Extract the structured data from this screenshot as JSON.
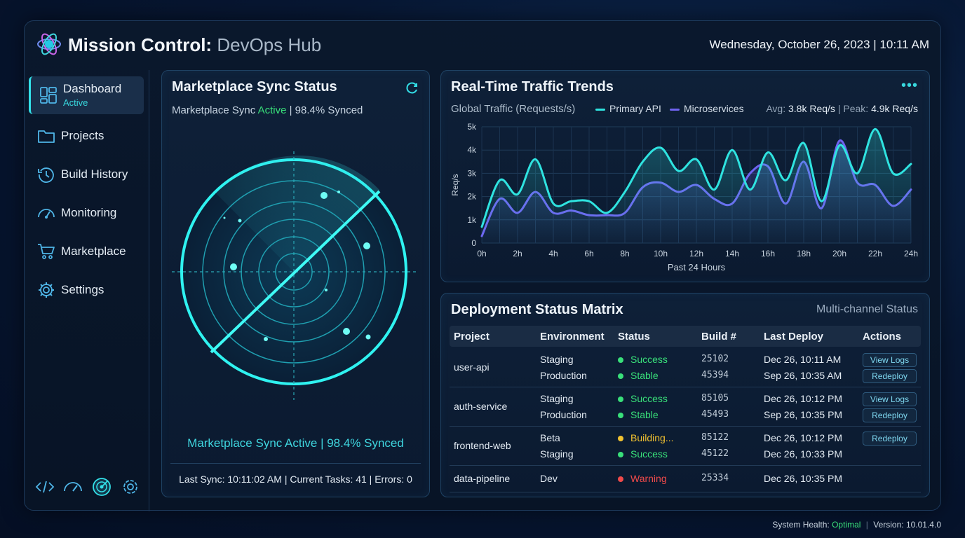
{
  "header": {
    "title": "Mission Control:",
    "subtitle": "DevOps Hub",
    "datetime": "Wednesday, October 26, 2023 | 10:11 AM"
  },
  "sidebar": {
    "items": [
      {
        "label": "Dashboard",
        "sub": "Active",
        "icon": "dashboard-icon"
      },
      {
        "label": "Projects",
        "icon": "folder-icon"
      },
      {
        "label": "Build History",
        "icon": "history-icon"
      },
      {
        "label": "Monitoring",
        "icon": "gauge-icon"
      },
      {
        "label": "Marketplace",
        "icon": "cart-icon"
      },
      {
        "label": "Settings",
        "icon": "gear-icon"
      }
    ],
    "bottom_icons": [
      "code-icon",
      "speedometer-icon",
      "radar-icon",
      "settings-icon"
    ]
  },
  "sync": {
    "title": "Marketplace Sync Status",
    "sub_prefix": "Marketplace Sync",
    "sub_status": "Active",
    "sub_suffix": "| 98.4% Synced",
    "footer": "Marketplace Sync Active | 98.4% Synced",
    "stats": "Last Sync: 10:11:02 AM | Current Tasks: 41 | Errors: 0"
  },
  "traffic": {
    "title": "Real-Time Traffic Trends",
    "subtitle": "Global Traffic (Requests/s)",
    "legend": [
      "Primary API",
      "Microservices"
    ],
    "avg_label": "Avg:",
    "avg_value": "3.8k Req/s",
    "peak_label": "Peak:",
    "peak_value": "4.9k Req/s"
  },
  "chart_data": {
    "type": "line",
    "xlabel": "Past 24 Hours",
    "ylabel": "Req/s",
    "x_ticks": [
      "0h",
      "2h",
      "4h",
      "6h",
      "8h",
      "10h",
      "12h",
      "14h",
      "16h",
      "18h",
      "20h",
      "22h",
      "24h"
    ],
    "y_ticks": [
      "0",
      "1k",
      "2k",
      "3k",
      "4k",
      "5k"
    ],
    "ylim": [
      0,
      5000
    ],
    "xlim": [
      0,
      24
    ],
    "grid": true,
    "series": [
      {
        "name": "Primary API",
        "color": "#2fe3e0",
        "x": [
          0,
          1,
          2,
          3,
          4,
          5,
          6,
          7,
          8,
          9,
          10,
          11,
          12,
          13,
          14,
          15,
          16,
          17,
          18,
          19,
          20,
          21,
          22,
          23,
          24
        ],
        "values": [
          700,
          2700,
          2100,
          3600,
          1700,
          1800,
          1800,
          1300,
          2200,
          3500,
          4100,
          3100,
          3600,
          2300,
          4000,
          2300,
          3900,
          2700,
          4300,
          1800,
          4200,
          3000,
          4900,
          3000,
          3400
        ]
      },
      {
        "name": "Microservices",
        "color": "#6f63f0",
        "x": [
          0,
          1,
          2,
          3,
          4,
          5,
          6,
          7,
          8,
          9,
          10,
          11,
          12,
          13,
          14,
          15,
          16,
          17,
          18,
          19,
          20,
          21,
          22,
          23,
          24
        ],
        "values": [
          300,
          1900,
          1300,
          2200,
          1300,
          1400,
          1200,
          1200,
          1300,
          2400,
          2600,
          2200,
          2500,
          1900,
          1700,
          3000,
          3300,
          1700,
          3500,
          1500,
          4400,
          2600,
          2500,
          1600,
          2300
        ]
      }
    ]
  },
  "matrix": {
    "title": "Deployment Status Matrix",
    "right_label": "Multi-channel Status",
    "headers": [
      "Project",
      "Environment",
      "Status",
      "Build #",
      "Last Deploy",
      "Actions"
    ],
    "rows": [
      {
        "project": "user-api",
        "lines": [
          {
            "env": "Staging",
            "status": "Success",
            "color": "#39e07a",
            "build": "25102",
            "deploy": "Dec 26, 10:11 AM",
            "action": "View Logs"
          },
          {
            "env": "Production",
            "status": "Stable",
            "color": "#39e07a",
            "build": "45394",
            "deploy": "Sep 26, 10:35 AM",
            "action": "Redeploy"
          }
        ]
      },
      {
        "project": "auth-service",
        "lines": [
          {
            "env": "Staging",
            "status": "Success",
            "color": "#39e07a",
            "build": "85105",
            "deploy": "Dec 26, 10:12 PM",
            "action": "View Logs"
          },
          {
            "env": "Production",
            "status": "Stable",
            "color": "#39e07a",
            "build": "45493",
            "deploy": "Sep 26, 10:35 PM",
            "action": "Redeploy"
          }
        ]
      },
      {
        "project": "frontend-web",
        "lines": [
          {
            "env": "Beta",
            "status": "Building...",
            "color": "#f2c230",
            "build": "85122",
            "deploy": "Dec 26, 10:12 PM",
            "action": "Redeploy"
          },
          {
            "env": "Staging",
            "status": "Success",
            "color": "#39e07a",
            "build": "45122",
            "deploy": "Dec 26, 10:33 PM",
            "action": ""
          }
        ]
      },
      {
        "project": "data-pipeline",
        "lines": [
          {
            "env": "Dev",
            "status": "Warning",
            "color": "#f04a4a",
            "build": "25334",
            "deploy": "Dec 26, 10:35 PM",
            "action": ""
          }
        ]
      }
    ]
  },
  "footer": {
    "health_label": "System Health:",
    "health_value": "Optimal",
    "version": "Version: 10.01.4.0"
  },
  "colors": {
    "accent": "#33e0e8",
    "success": "#39e07a",
    "warning": "#f2c230",
    "error": "#f04a4a"
  }
}
